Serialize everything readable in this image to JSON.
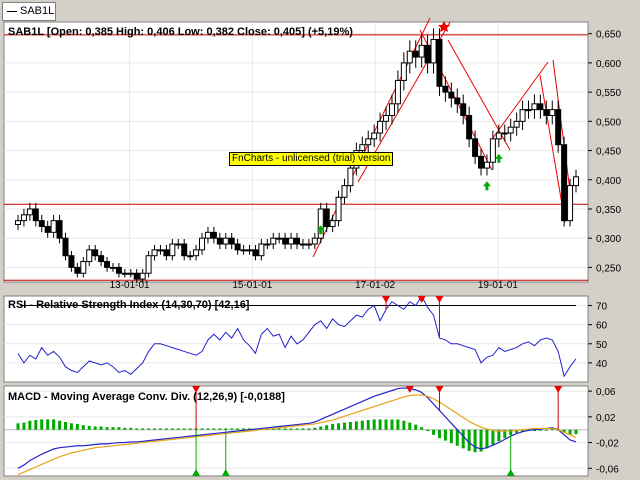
{
  "tab": {
    "label": "SAB1L"
  },
  "watermark": "FnCharts - unlicensed (trial) version",
  "price_panel": {
    "header": "SAB1L [Open: 0,385  High: 0,406  Low: 0,382  Close: 0,405] (+5,19%)"
  },
  "rsi_panel": {
    "header": "RSI - Relative Strength Index (14,30,70) [42,16]"
  },
  "macd_panel": {
    "header": "MACD - Moving Average Conv. Div. (12,26,9) [-0,0188]"
  },
  "chart_data": [
    {
      "type": "candlestick",
      "title": "SAB1L [Open: 0,385  High: 0,406  Low: 0,382  Close: 0,405] (+5,19%)",
      "x_ticks": [
        "13-01-01",
        "15-01-01",
        "17-01-02",
        "19-01-01"
      ],
      "y_ticks": [
        "0,650",
        "0,600",
        "0,550",
        "0,500",
        "0,450",
        "0,400",
        "0,350",
        "0,300",
        "0,250"
      ],
      "ylim": [
        0.225,
        0.67
      ],
      "horizontal_lines": [
        0.648,
        0.358,
        0.228
      ],
      "closes": [
        0.33,
        0.34,
        0.35,
        0.33,
        0.32,
        0.31,
        0.33,
        0.3,
        0.27,
        0.25,
        0.24,
        0.26,
        0.28,
        0.27,
        0.26,
        0.25,
        0.25,
        0.24,
        0.24,
        0.24,
        0.23,
        0.24,
        0.27,
        0.28,
        0.28,
        0.27,
        0.29,
        0.29,
        0.27,
        0.27,
        0.28,
        0.3,
        0.31,
        0.3,
        0.29,
        0.3,
        0.29,
        0.28,
        0.28,
        0.28,
        0.27,
        0.29,
        0.29,
        0.3,
        0.3,
        0.29,
        0.3,
        0.29,
        0.29,
        0.29,
        0.3,
        0.35,
        0.32,
        0.33,
        0.37,
        0.39,
        0.42,
        0.45,
        0.46,
        0.47,
        0.48,
        0.5,
        0.51,
        0.53,
        0.57,
        0.6,
        0.62,
        0.61,
        0.63,
        0.6,
        0.64,
        0.56,
        0.55,
        0.54,
        0.53,
        0.51,
        0.47,
        0.44,
        0.42,
        0.43,
        0.47,
        0.48,
        0.48,
        0.49,
        0.5,
        0.52,
        0.52,
        0.53,
        0.52,
        0.51,
        0.52,
        0.46,
        0.33,
        0.39,
        0.405
      ],
      "up_arrows_at_index": [
        51,
        79,
        81
      ]
    },
    {
      "type": "line",
      "title": "RSI - Relative Strength Index (14,30,70) [42,16]",
      "y_ticks": [
        70,
        60,
        50,
        40
      ],
      "ylim": [
        30,
        75
      ],
      "horizontal_lines": [
        70
      ],
      "values": [
        45,
        40,
        44,
        42,
        48,
        44,
        46,
        43,
        38,
        36,
        35,
        38,
        41,
        40,
        39,
        40,
        38,
        35,
        36,
        34,
        37,
        40,
        46,
        50,
        50,
        49,
        48,
        47,
        46,
        45,
        44,
        46,
        52,
        55,
        52,
        56,
        53,
        58,
        52,
        49,
        45,
        55,
        58,
        54,
        55,
        48,
        54,
        50,
        52,
        56,
        60,
        62,
        58,
        63,
        60,
        59,
        62,
        65,
        64,
        68,
        70,
        62,
        68,
        72,
        70,
        68,
        72,
        70,
        75,
        69,
        65,
        53,
        52,
        50,
        50,
        49,
        48,
        47,
        40,
        43,
        44,
        48,
        46,
        47,
        48,
        50,
        51,
        49,
        52,
        53,
        52,
        46,
        33,
        38,
        42.16
      ],
      "down_arrows_at_index": [
        62,
        68,
        71
      ]
    },
    {
      "type": "bar+line",
      "title": "MACD - Moving Average Conv. Div. (12,26,9) [-0,0188]",
      "y_ticks": [
        "0,06",
        "0,02",
        "-0,02",
        "-0,06"
      ],
      "ylim": [
        -0.072,
        0.068
      ],
      "series": [
        {
          "values": [
            -0.06,
            -0.055,
            -0.048,
            -0.043,
            -0.038,
            -0.034,
            -0.03,
            -0.028,
            -0.027,
            -0.026,
            -0.025,
            -0.025,
            -0.024,
            -0.023,
            -0.022,
            -0.022,
            -0.021,
            -0.02,
            -0.02,
            -0.019,
            -0.019,
            -0.018,
            -0.017,
            -0.016,
            -0.015,
            -0.014,
            -0.013,
            -0.012,
            -0.011,
            -0.01,
            -0.009,
            -0.008,
            -0.007,
            -0.006,
            -0.005,
            -0.004,
            -0.003,
            -0.002,
            -0.001,
            0.0,
            0.001,
            0.002,
            0.003,
            0.004,
            0.005,
            0.006,
            0.007,
            0.008,
            0.009,
            0.01,
            0.012,
            0.016,
            0.02,
            0.024,
            0.028,
            0.032,
            0.036,
            0.04,
            0.044,
            0.048,
            0.052,
            0.055,
            0.058,
            0.061,
            0.064,
            0.065,
            0.064,
            0.062,
            0.058,
            0.05,
            0.04,
            0.03,
            0.02,
            0.01,
            0.0,
            -0.01,
            -0.02,
            -0.027,
            -0.03,
            -0.028,
            -0.024,
            -0.02,
            -0.015,
            -0.01,
            -0.006,
            -0.003,
            -0.001,
            0.0,
            0.001,
            0.002,
            0.003,
            0.0,
            -0.008,
            -0.016,
            -0.0188
          ]
        },
        {
          "values": [
            -0.07,
            -0.066,
            -0.062,
            -0.058,
            -0.054,
            -0.05,
            -0.046,
            -0.042,
            -0.039,
            -0.036,
            -0.034,
            -0.032,
            -0.03,
            -0.028,
            -0.027,
            -0.026,
            -0.025,
            -0.024,
            -0.023,
            -0.022,
            -0.021,
            -0.02,
            -0.019,
            -0.018,
            -0.017,
            -0.016,
            -0.015,
            -0.014,
            -0.013,
            -0.012,
            -0.011,
            -0.01,
            -0.009,
            -0.008,
            -0.007,
            -0.006,
            -0.005,
            -0.004,
            -0.003,
            -0.002,
            -0.001,
            0.0,
            0.001,
            0.002,
            0.003,
            0.004,
            0.005,
            0.006,
            0.007,
            0.008,
            0.009,
            0.011,
            0.013,
            0.015,
            0.018,
            0.021,
            0.024,
            0.027,
            0.03,
            0.033,
            0.036,
            0.039,
            0.042,
            0.045,
            0.048,
            0.051,
            0.053,
            0.054,
            0.054,
            0.052,
            0.048,
            0.043,
            0.037,
            0.031,
            0.025,
            0.019,
            0.013,
            0.008,
            0.004,
            0.001,
            -0.001,
            -0.002,
            -0.002,
            -0.002,
            -0.001,
            0.0,
            0.001,
            0.002,
            0.002,
            0.002,
            0.002,
            0.0,
            -0.004,
            -0.008,
            -0.012
          ]
        }
      ],
      "histogram": [
        0.01,
        0.011,
        0.014,
        0.015,
        0.016,
        0.016,
        0.016,
        0.014,
        0.012,
        0.01,
        0.009,
        0.007,
        0.006,
        0.005,
        0.005,
        0.004,
        0.004,
        0.004,
        0.003,
        0.003,
        0.002,
        0.002,
        0.002,
        0.002,
        0.002,
        0.002,
        0.002,
        0.002,
        0.002,
        0.002,
        0.002,
        0.002,
        0.002,
        0.002,
        0.002,
        0.002,
        0.002,
        0.002,
        0.002,
        0.002,
        0.002,
        0.002,
        0.002,
        0.002,
        0.002,
        0.002,
        0.002,
        0.002,
        0.002,
        0.002,
        0.003,
        0.005,
        0.007,
        0.009,
        0.01,
        0.011,
        0.012,
        0.013,
        0.014,
        0.015,
        0.016,
        0.016,
        0.016,
        0.016,
        0.016,
        0.014,
        0.011,
        0.008,
        0.004,
        -0.002,
        -0.008,
        -0.013,
        -0.017,
        -0.021,
        -0.025,
        -0.029,
        -0.033,
        -0.035,
        -0.034,
        -0.029,
        -0.023,
        -0.018,
        -0.013,
        -0.008,
        -0.005,
        -0.003,
        -0.002,
        -0.002,
        -0.001,
        0.0,
        0.001,
        0.0,
        -0.004,
        -0.008,
        -0.007
      ],
      "up_arrows_at_index": [
        30,
        35,
        83
      ],
      "down_arrows_at_index": [
        30,
        66,
        71,
        91
      ]
    }
  ]
}
